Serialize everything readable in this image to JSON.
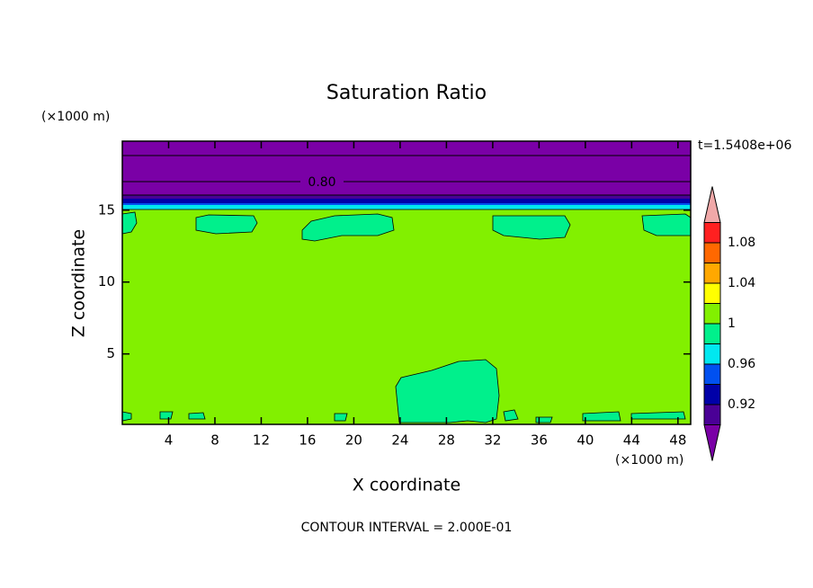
{
  "chart_data": {
    "type": "contour",
    "title": "Saturation Ratio",
    "x_label": "X coordinate",
    "y_label": "Z coordinate",
    "x_unit": "(×1000 m)",
    "y_unit": "(×1000 m)",
    "time_label": "t=1.5408e+06",
    "contour_label": "0.80",
    "footer": "CONTOUR INTERVAL = 2.000E-01",
    "xlim": [
      0,
      49.1
    ],
    "ylim": [
      0.1,
      19.8
    ],
    "xticks": [
      4,
      8,
      12,
      16,
      20,
      24,
      28,
      32,
      36,
      40,
      44,
      48
    ],
    "yticks": [
      5,
      10,
      15
    ],
    "colorbar": {
      "levels": [
        0.9,
        0.92,
        0.94,
        0.96,
        0.98,
        1,
        1.02,
        1.04,
        1.06,
        1.08,
        1.1
      ],
      "ticks": [
        0.92,
        0.96,
        1,
        1.04,
        1.08
      ],
      "under_color": "#7a00a6",
      "over_color": "#f0a8a8",
      "colors": [
        "#4a0096",
        "#0000a8",
        "#0050f0",
        "#00e8f0",
        "#00f08c",
        "#82f000",
        "#ffff00",
        "#ffa800",
        "#ff6800",
        "#ff2020"
      ]
    }
  }
}
